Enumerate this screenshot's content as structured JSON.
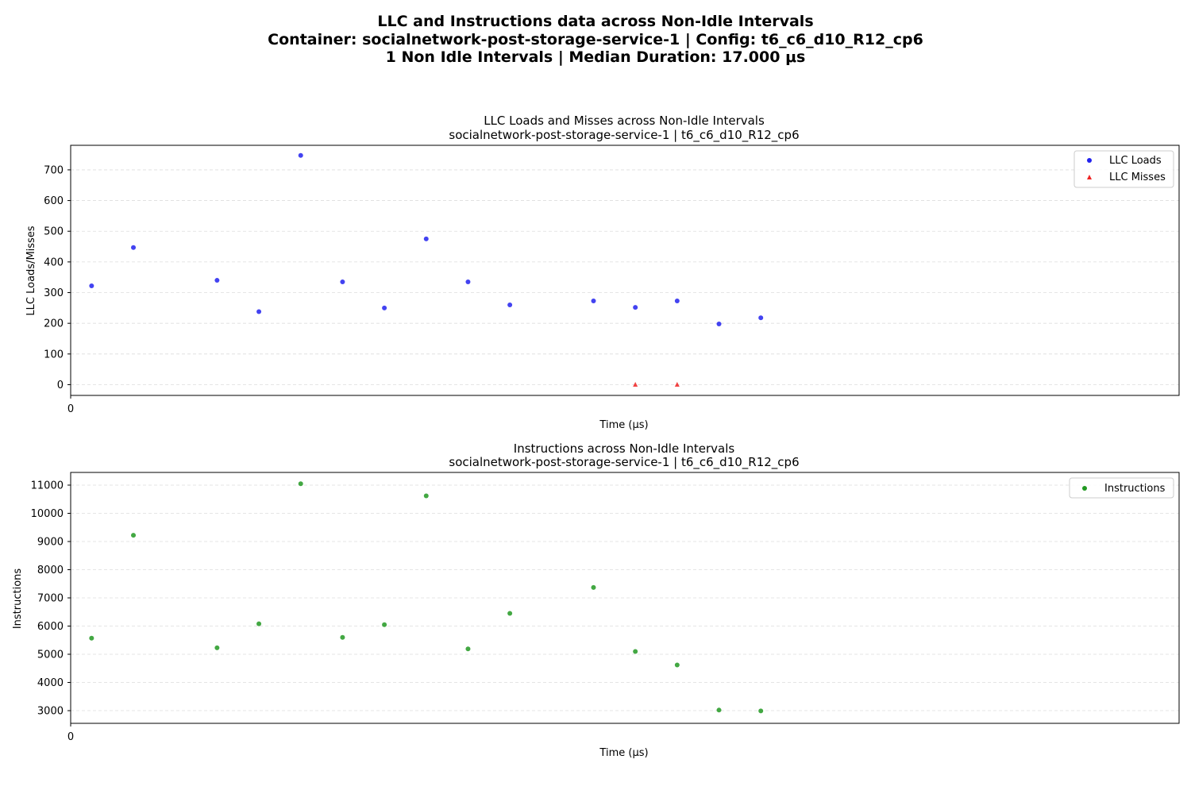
{
  "suptitle": {
    "line1": "LLC and Instructions data across Non-Idle Intervals",
    "line2": "Container: socialnetwork-post-storage-service-1 | Config: t6_c6_d10_R12_cp6",
    "line3": "1 Non Idle Intervals | Median Duration: 17.000 μs"
  },
  "colors": {
    "loads": "#2222ee",
    "misses": "#ee2222",
    "instructions": "#229922"
  },
  "chart_data": [
    {
      "type": "scatter",
      "title": "LLC Loads and Misses across Non-Idle Intervals",
      "subtitle": "socialnetwork-post-storage-service-1 | t6_c6_d10_R12_cp6",
      "xlabel": "Time (μs)",
      "ylabel": "LLC Loads/Misses",
      "xlim": [
        0,
        26.5
      ],
      "ylim": [
        -35,
        780
      ],
      "xticks": [
        0
      ],
      "yticks": [
        0,
        100,
        200,
        300,
        400,
        500,
        600,
        700
      ],
      "grid": "y-dashed",
      "legend_position": "top-right",
      "series": [
        {
          "name": "LLC Loads",
          "marker": "circle",
          "x": [
            0.5,
            1.5,
            3.5,
            4.5,
            5.5,
            6.5,
            7.5,
            8.5,
            9.5,
            10.5,
            12.5,
            13.5,
            14.5,
            15.5,
            16.5
          ],
          "y": [
            322,
            447,
            340,
            238,
            747,
            335,
            250,
            475,
            335,
            260,
            273,
            252,
            273,
            198,
            218
          ]
        },
        {
          "name": "LLC Misses",
          "marker": "triangle",
          "x": [
            13.5,
            14.5
          ],
          "y": [
            0,
            0
          ]
        }
      ]
    },
    {
      "type": "scatter",
      "title": "Instructions across Non-Idle Intervals",
      "subtitle": "socialnetwork-post-storage-service-1 | t6_c6_d10_R12_cp6",
      "xlabel": "Time (μs)",
      "ylabel": "Instructions",
      "xlim": [
        0,
        26.5
      ],
      "ylim": [
        2550,
        11450
      ],
      "xticks": [
        0
      ],
      "yticks": [
        3000,
        4000,
        5000,
        6000,
        7000,
        8000,
        9000,
        10000,
        11000
      ],
      "grid": "y-dashed",
      "legend_position": "top-right",
      "series": [
        {
          "name": "Instructions",
          "marker": "circle",
          "x": [
            0.5,
            1.5,
            3.5,
            4.5,
            5.5,
            6.5,
            7.5,
            8.5,
            9.5,
            10.5,
            12.5,
            13.5,
            14.5,
            15.5,
            16.5
          ],
          "y": [
            5570,
            9220,
            5230,
            6080,
            11050,
            5600,
            6050,
            10620,
            5190,
            6450,
            7370,
            5100,
            4620,
            3020,
            2990
          ]
        }
      ]
    }
  ]
}
